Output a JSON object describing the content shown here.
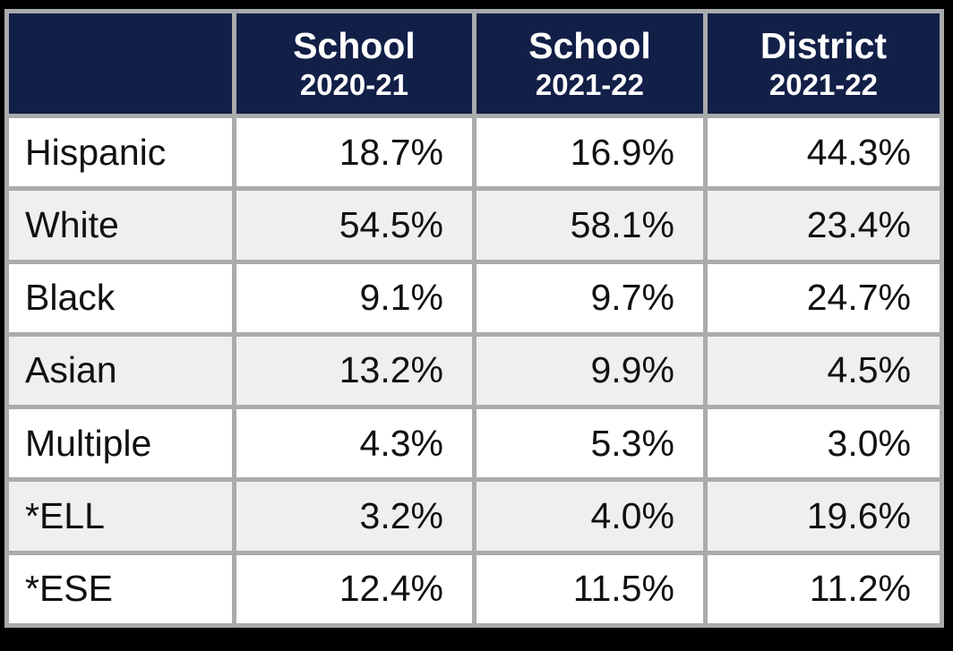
{
  "colors": {
    "frame": "#000000",
    "grid": "#a9abad",
    "header_bg": "#121f47",
    "header_text": "#ffffff",
    "row_bg": "#ffffff",
    "row_alt_bg": "#efefef",
    "cell_text": "#111111"
  },
  "chart_data": {
    "type": "table",
    "title": "",
    "header": [
      {
        "title": "",
        "subtitle": ""
      },
      {
        "title": "School",
        "subtitle": "2020-21"
      },
      {
        "title": "School",
        "subtitle": "2021-22"
      },
      {
        "title": "District",
        "subtitle": "2021-22"
      }
    ],
    "rows": [
      {
        "label": "Hispanic",
        "values": [
          "18.7%",
          "16.9%",
          "44.3%"
        ]
      },
      {
        "label": "White",
        "values": [
          "54.5%",
          "58.1%",
          "23.4%"
        ]
      },
      {
        "label": "Black",
        "values": [
          "9.1%",
          "9.7%",
          "24.7%"
        ]
      },
      {
        "label": "Asian",
        "values": [
          "13.2%",
          "9.9%",
          "4.5%"
        ]
      },
      {
        "label": "Multiple",
        "values": [
          "4.3%",
          "5.3%",
          "3.0%"
        ]
      },
      {
        "label": "*ELL",
        "values": [
          "3.2%",
          "4.0%",
          "19.6%"
        ]
      },
      {
        "label": "*ESE",
        "values": [
          "12.4%",
          "11.5%",
          "11.2%"
        ]
      }
    ]
  }
}
